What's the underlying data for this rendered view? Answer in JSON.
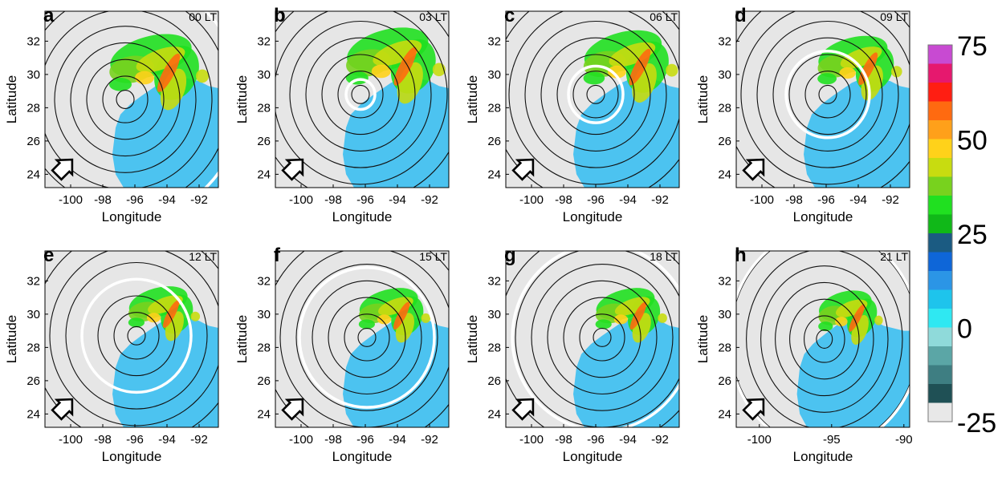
{
  "colors": {
    "background": "#e6e6e6",
    "ocean": "#4cc3f0",
    "ring": "#111111",
    "sweep_ring": "#ffffff",
    "arrow_fill": "#ffffff",
    "arrow_stroke": "#000000"
  },
  "colorbar": {
    "tick_labels": [
      "75",
      "50",
      "25",
      "0",
      "-25"
    ],
    "min": -25,
    "max": 75,
    "bands": [
      {
        "from": -25,
        "to": -20,
        "color": "#e8e8e8"
      },
      {
        "from": -20,
        "to": -15,
        "color": "#1f5055"
      },
      {
        "from": -15,
        "to": -10,
        "color": "#3e7e82"
      },
      {
        "from": -10,
        "to": -5,
        "color": "#5ba6a6"
      },
      {
        "from": -5,
        "to": 0,
        "color": "#8fdada"
      },
      {
        "from": 0,
        "to": 5,
        "color": "#2fe8f2"
      },
      {
        "from": 5,
        "to": 10,
        "color": "#1ec4ec"
      },
      {
        "from": 10,
        "to": 15,
        "color": "#2b95e6"
      },
      {
        "from": 15,
        "to": 20,
        "color": "#0e66d8"
      },
      {
        "from": 20,
        "to": 25,
        "color": "#1b5b82"
      },
      {
        "from": 25,
        "to": 30,
        "color": "#10b818"
      },
      {
        "from": 30,
        "to": 35,
        "color": "#20e020"
      },
      {
        "from": 35,
        "to": 40,
        "color": "#78d21e"
      },
      {
        "from": 40,
        "to": 45,
        "color": "#c8dc10"
      },
      {
        "from": 45,
        "to": 50,
        "color": "#ffd21a"
      },
      {
        "from": 50,
        "to": 55,
        "color": "#ffa01a"
      },
      {
        "from": 55,
        "to": 60,
        "color": "#ff6a10"
      },
      {
        "from": 60,
        "to": 65,
        "color": "#ff1e12"
      },
      {
        "from": 65,
        "to": 70,
        "color": "#e6186e"
      },
      {
        "from": 70,
        "to": 75,
        "color": "#c84ad2"
      }
    ]
  },
  "chart_data": [
    {
      "type": "heatmap",
      "panel_letter": "a",
      "time_label": "00 LT",
      "xlabel": "Longitude",
      "ylabel": "Latitude",
      "xticks": [
        "-100",
        "-98",
        "-96",
        "-94",
        "-92"
      ],
      "yticks": [
        "24",
        "26",
        "28",
        "30",
        "32"
      ],
      "xlim": [
        -101.6,
        -90.8
      ],
      "ylim": [
        23.2,
        33.8
      ],
      "center": [
        -96.6,
        28.5
      ],
      "rain_shift": [
        0,
        0
      ],
      "rain_scale": 1.0,
      "sweep_ring_radius": 7.3
    },
    {
      "type": "heatmap",
      "panel_letter": "b",
      "time_label": "03 LT",
      "xlabel": "Longitude",
      "ylabel": "Latitude",
      "xticks": [
        "-100",
        "-98",
        "-96",
        "-94",
        "-92"
      ],
      "yticks": [
        "24",
        "26",
        "28",
        "30",
        "32"
      ],
      "xlim": [
        -101.6,
        -90.8
      ],
      "ylim": [
        23.2,
        33.8
      ],
      "center": [
        -96.3,
        28.8
      ],
      "rain_shift": [
        0.3,
        0.3
      ],
      "rain_scale": 1.0,
      "sweep_ring_radius": 0.9
    },
    {
      "type": "heatmap",
      "panel_letter": "c",
      "time_label": "06 LT",
      "xlabel": "Longitude",
      "ylabel": "Latitude",
      "xticks": [
        "-100",
        "-98",
        "-96",
        "-94",
        "-92"
      ],
      "yticks": [
        "24",
        "26",
        "28",
        "30",
        "32"
      ],
      "xlim": [
        -101.6,
        -90.8
      ],
      "ylim": [
        23.2,
        33.8
      ],
      "center": [
        -96.0,
        28.8
      ],
      "rain_shift": [
        0.6,
        0.4
      ],
      "rain_scale": 0.95,
      "sweep_ring_radius": 1.7
    },
    {
      "type": "heatmap",
      "panel_letter": "d",
      "time_label": "09 LT",
      "xlabel": "Longitude",
      "ylabel": "Latitude",
      "xticks": [
        "-100",
        "-98",
        "-96",
        "-94",
        "-92"
      ],
      "yticks": [
        "24",
        "26",
        "28",
        "30",
        "32"
      ],
      "xlim": [
        -101.6,
        -90.8
      ],
      "ylim": [
        23.2,
        33.8
      ],
      "center": [
        -95.9,
        28.8
      ],
      "rain_shift": [
        0.7,
        0.6
      ],
      "rain_scale": 0.85,
      "sweep_ring_radius": 2.6
    },
    {
      "type": "heatmap",
      "panel_letter": "e",
      "time_label": "12 LT",
      "xlabel": "Longitude",
      "ylabel": "Latitude",
      "xticks": [
        "-100",
        "-98",
        "-96",
        "-94",
        "-92"
      ],
      "yticks": [
        "24",
        "26",
        "28",
        "30",
        "32"
      ],
      "xlim": [
        -101.6,
        -90.8
      ],
      "ylim": [
        23.2,
        33.8
      ],
      "center": [
        -95.9,
        28.7
      ],
      "rain_shift": [
        0.7,
        0.5
      ],
      "rain_scale": 0.72,
      "sweep_ring_radius": 3.4
    },
    {
      "type": "heatmap",
      "panel_letter": "f",
      "time_label": "15 LT",
      "xlabel": "Longitude",
      "ylabel": "Latitude",
      "xticks": [
        "-100",
        "-98",
        "-96",
        "-94",
        "-92"
      ],
      "yticks": [
        "24",
        "26",
        "28",
        "30",
        "32"
      ],
      "xlim": [
        -101.6,
        -90.8
      ],
      "ylim": [
        23.2,
        33.8
      ],
      "center": [
        -95.9,
        28.6
      ],
      "rain_shift": [
        0.7,
        0.5
      ],
      "rain_scale": 0.72,
      "sweep_ring_radius": 4.2
    },
    {
      "type": "heatmap",
      "panel_letter": "g",
      "time_label": "18 LT",
      "xlabel": "Longitude",
      "ylabel": "Latitude",
      "xticks": [
        "-100",
        "-98",
        "-96",
        "-94",
        "-92"
      ],
      "yticks": [
        "24",
        "26",
        "28",
        "30",
        "32"
      ],
      "xlim": [
        -101.6,
        -90.8
      ],
      "ylim": [
        23.2,
        33.8
      ],
      "center": [
        -95.6,
        28.6
      ],
      "rain_shift": [
        1.0,
        0.5
      ],
      "rain_scale": 0.72,
      "sweep_ring_radius": 5.6
    },
    {
      "type": "heatmap",
      "panel_letter": "h",
      "time_label": "21 LT",
      "xlabel": "Longitude",
      "ylabel": "Latitude",
      "xticks": [
        "-100",
        "-95",
        "-90"
      ],
      "yticks": [
        "24",
        "26",
        "28",
        "30",
        "32"
      ],
      "xlim": [
        -101.6,
        -89.6
      ],
      "ylim": [
        23.2,
        33.8
      ],
      "center": [
        -95.5,
        28.5
      ],
      "rain_shift": [
        1.0,
        0.4
      ],
      "rain_scale": 0.72,
      "sweep_ring_radius": 6.6
    }
  ]
}
